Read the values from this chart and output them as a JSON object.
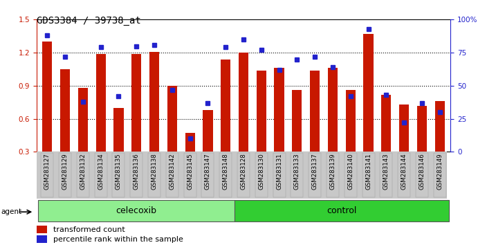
{
  "title": "GDS3384 / 39738_at",
  "samples": [
    "GSM283127",
    "GSM283129",
    "GSM283132",
    "GSM283134",
    "GSM283135",
    "GSM283136",
    "GSM283138",
    "GSM283142",
    "GSM283145",
    "GSM283147",
    "GSM283148",
    "GSM283128",
    "GSM283130",
    "GSM283131",
    "GSM283133",
    "GSM283137",
    "GSM283139",
    "GSM283140",
    "GSM283141",
    "GSM283143",
    "GSM283144",
    "GSM283146",
    "GSM283149"
  ],
  "transformed_count": [
    1.3,
    1.05,
    0.88,
    1.19,
    0.7,
    1.19,
    1.21,
    0.9,
    0.47,
    0.68,
    1.14,
    1.2,
    1.04,
    1.06,
    0.86,
    1.04,
    1.06,
    0.86,
    1.37,
    0.82,
    0.73,
    0.72,
    0.76
  ],
  "percentile_rank": [
    88,
    72,
    38,
    79,
    42,
    80,
    81,
    47,
    10,
    37,
    79,
    85,
    77,
    62,
    70,
    72,
    64,
    42,
    93,
    43,
    22,
    37,
    30
  ],
  "celecoxib_count": 11,
  "control_count": 12,
  "celecoxib_label": "celecoxib",
  "control_label": "control",
  "bar_color": "#C81800",
  "dot_color": "#2222CC",
  "ylim_left": [
    0.3,
    1.5
  ],
  "ylim_right": [
    0,
    100
  ],
  "yticks_left": [
    0.3,
    0.6,
    0.9,
    1.2,
    1.5
  ],
  "yticks_right": [
    0,
    25,
    50,
    75,
    100
  ],
  "yticklabels_right": [
    "0",
    "25",
    "50",
    "75",
    "100%"
  ],
  "grid_color": "#000000",
  "agent_label": "agent",
  "legend_transformed": "transformed count",
  "legend_percentile": "percentile rank within the sample",
  "plot_bg": "#FFFFFF",
  "xlabel_bg": "#C8C8C8",
  "celecoxib_color": "#90EE90",
  "control_color": "#32CD32",
  "bar_width": 0.55,
  "title_fontsize": 10,
  "tick_fontsize": 7.5,
  "label_fontsize": 8,
  "group_fontsize": 9
}
